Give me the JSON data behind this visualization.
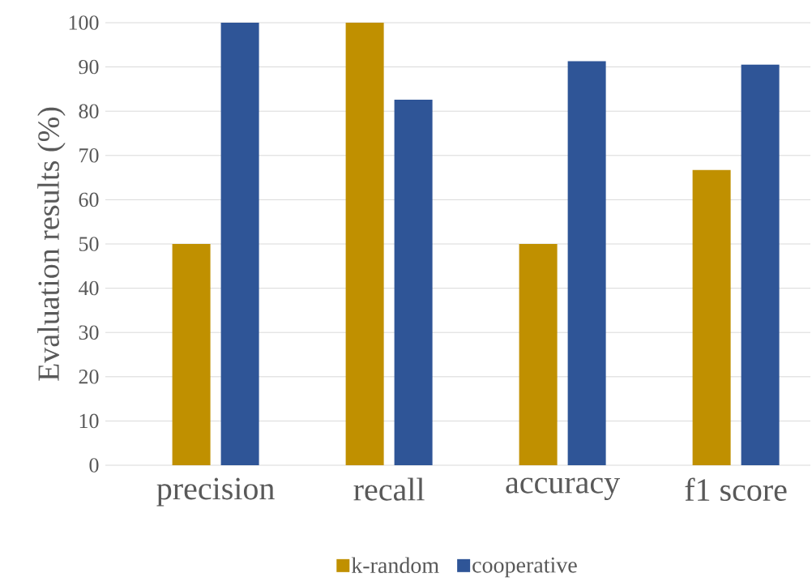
{
  "chart_data": {
    "type": "bar",
    "ylabel": "Evaluation results (%)",
    "categories": [
      "precision",
      "recall",
      "accuracy",
      "f1 score"
    ],
    "series": [
      {
        "name": "k-random",
        "color": "#c09000",
        "values": [
          50,
          100,
          50,
          66.7
        ]
      },
      {
        "name": "cooperative",
        "color": "#2f5597",
        "values": [
          100,
          82.6,
          91.3,
          90.5
        ]
      }
    ],
    "ylim": [
      0,
      100
    ],
    "yticks": [
      0,
      10,
      20,
      30,
      40,
      50,
      60,
      70,
      80,
      90,
      100
    ],
    "grid": "y",
    "legend": "bottom"
  }
}
